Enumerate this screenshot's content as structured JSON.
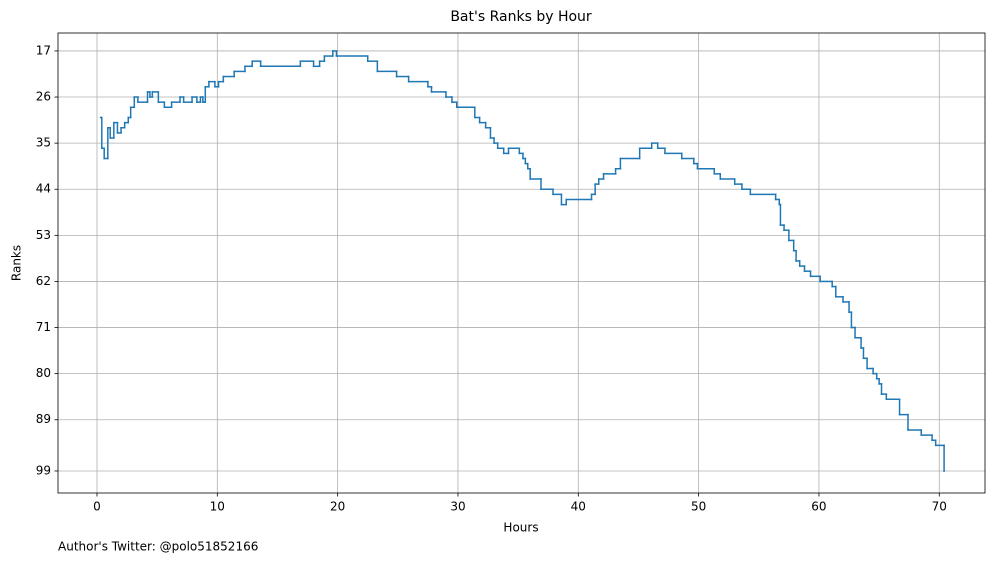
{
  "chart_data": {
    "type": "step",
    "title": "Bat's Ranks by Hour",
    "xlabel": "Hours",
    "ylabel": "Ranks",
    "footnote": "Author's Twitter: @polo51852166",
    "color": "#1f77b4",
    "grid": true,
    "xlim": [
      -3.24,
      73.8
    ],
    "xticks": [
      0,
      10,
      20,
      30,
      40,
      50,
      60,
      70
    ],
    "ylim": [
      103.3,
      13.5
    ],
    "yticks": [
      17,
      26,
      35,
      44,
      53,
      62,
      71,
      80,
      89,
      99
    ],
    "x": [
      0.3,
      0.4,
      0.6,
      0.9,
      1.1,
      1.4,
      1.7,
      2.0,
      2.3,
      2.6,
      2.8,
      3.1,
      3.4,
      4.2,
      4.4,
      4.6,
      5.1,
      5.6,
      6.2,
      6.9,
      7.2,
      7.9,
      8.3,
      8.6,
      8.8,
      9.0,
      9.3,
      9.8,
      10.1,
      10.5,
      11.4,
      12.3,
      12.9,
      13.6,
      16.9,
      18.0,
      18.5,
      18.9,
      19.6,
      19.9,
      22.5,
      23.3,
      24.9,
      25.9,
      27.5,
      27.8,
      29.0,
      29.5,
      29.9,
      31.4,
      31.8,
      32.3,
      32.7,
      33.0,
      33.3,
      33.8,
      34.2,
      35.1,
      35.4,
      35.6,
      35.8,
      36.0,
      36.9,
      37.9,
      38.6,
      39.0,
      41.1,
      41.4,
      41.7,
      42.1,
      43.1,
      43.5,
      45.1,
      46.1,
      46.6,
      47.2,
      48.6,
      49.6,
      49.9,
      51.3,
      51.8,
      53.0,
      53.6,
      54.3,
      56.4,
      56.7,
      56.8,
      57.1,
      57.5,
      57.9,
      58.1,
      58.4,
      58.8,
      59.3,
      60.1,
      61.1,
      61.4,
      62.0,
      62.5,
      62.7,
      63.0,
      63.5,
      63.7,
      64.0,
      64.5,
      64.8,
      65.0,
      65.2,
      65.6,
      66.7,
      67.4,
      68.5,
      69.4,
      69.7,
      70.4
    ],
    "values": [
      30,
      36,
      38,
      32,
      34,
      31,
      33,
      32,
      31,
      30,
      28,
      26,
      27,
      25,
      26,
      25,
      27,
      28,
      27,
      26,
      27,
      26,
      27,
      26,
      27,
      24,
      23,
      24,
      23,
      22,
      21,
      20,
      19,
      20,
      19,
      20,
      19,
      18,
      17,
      18,
      19,
      21,
      22,
      23,
      24,
      25,
      26,
      27,
      28,
      30,
      31,
      32,
      34,
      35,
      36,
      37,
      36,
      37,
      38,
      39,
      40,
      42,
      44,
      45,
      47,
      46,
      45,
      43,
      42,
      41,
      40,
      38,
      36,
      35,
      36,
      37,
      38,
      39,
      40,
      41,
      42,
      43,
      44,
      45,
      46,
      47,
      51,
      52,
      54,
      56,
      58,
      59,
      60,
      61,
      62,
      63,
      65,
      66,
      68,
      71,
      73,
      75,
      77,
      79,
      80,
      81,
      82,
      84,
      85,
      88,
      91,
      92,
      93,
      94,
      99
    ]
  }
}
